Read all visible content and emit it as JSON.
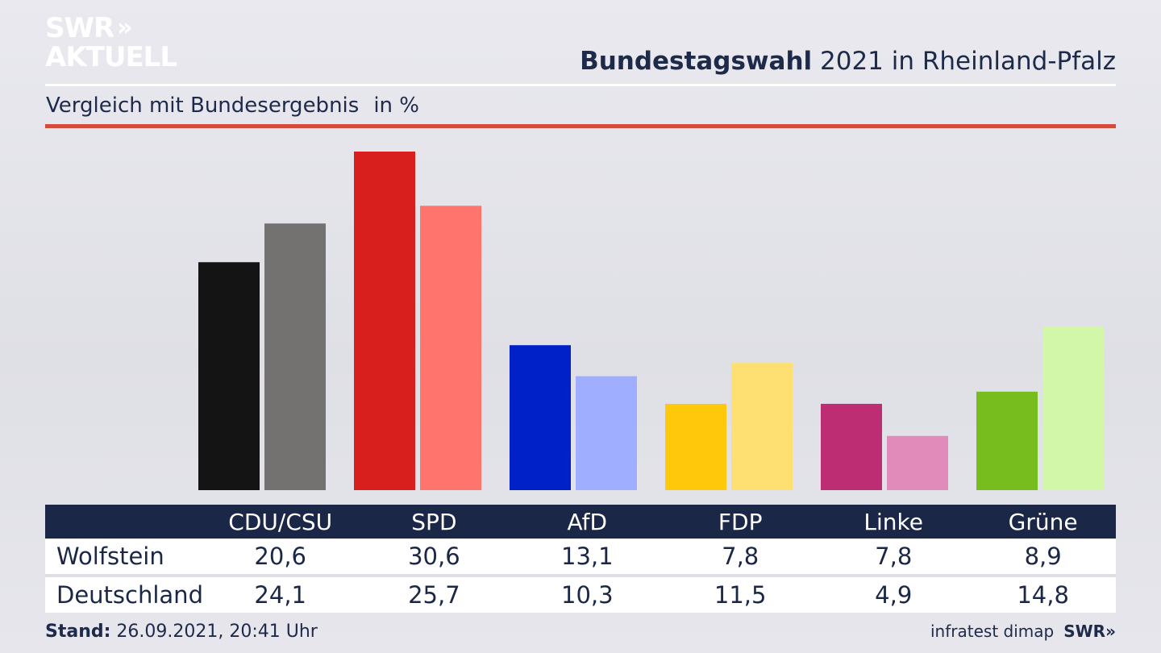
{
  "brand": {
    "line1": "SWR",
    "arrows": "»",
    "line2": "AKTUELL"
  },
  "header": {
    "title_bold": "Bundestagswahl",
    "title_rest": " 2021 in Rheinland-Pfalz"
  },
  "subheader": {
    "text": "Vergleich mit Bundesergebnis",
    "unit": "in %"
  },
  "chart_data": {
    "type": "bar",
    "categories": [
      "CDU/CSU",
      "SPD",
      "AfD",
      "FDP",
      "Linke",
      "Grüne"
    ],
    "series": [
      {
        "name": "Wolfstein",
        "values": [
          20.6,
          30.6,
          13.1,
          7.8,
          7.8,
          8.9
        ]
      },
      {
        "name": "Deutschland",
        "values": [
          24.1,
          25.7,
          10.3,
          11.5,
          4.9,
          14.8
        ]
      }
    ],
    "colors": [
      [
        "#141414",
        "#747270"
      ],
      [
        "#d91e1e",
        "#ff746d"
      ],
      [
        "#0020c8",
        "#9faeff"
      ],
      [
        "#ffc80a",
        "#fde071"
      ],
      [
        "#bd2d73",
        "#e18bbb"
      ],
      [
        "#78bd1e",
        "#d3f7a9"
      ]
    ],
    "ylim": [
      0,
      30.6
    ]
  },
  "table": {
    "rows": [
      {
        "label": "Wolfstein",
        "cells": [
          "20,6",
          "30,6",
          "13,1",
          "7,8",
          "7,8",
          "8,9"
        ]
      },
      {
        "label": "Deutschland",
        "cells": [
          "24,1",
          "25,7",
          "10,3",
          "11,5",
          "4,9",
          "14,8"
        ]
      }
    ]
  },
  "footer": {
    "stand_label": "Stand:",
    "stand_value": " 26.09.2021, 20:41 Uhr",
    "source": "infratest dimap",
    "logo": "SWR»"
  }
}
